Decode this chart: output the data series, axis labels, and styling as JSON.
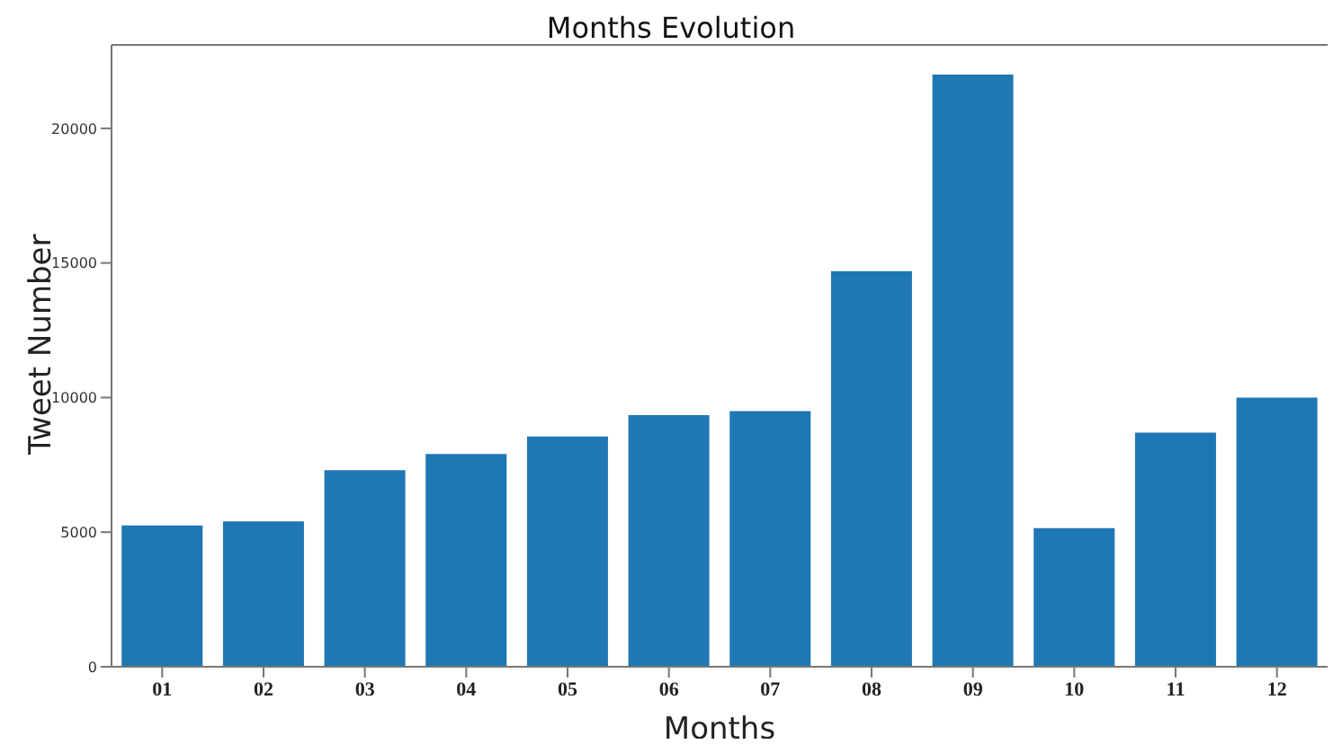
{
  "chart_data": {
    "type": "bar",
    "title": "Months Evolution",
    "xlabel": "Months",
    "ylabel": "Tweet Number",
    "categories": [
      "01",
      "02",
      "03",
      "04",
      "05",
      "06",
      "07",
      "08",
      "09",
      "10",
      "11",
      "12"
    ],
    "values": [
      5250,
      5400,
      7300,
      7900,
      8550,
      9350,
      9500,
      14700,
      22000,
      5150,
      8700,
      10000
    ],
    "color": "#1f77b4",
    "ylim": [
      0,
      23100
    ],
    "yticks": [
      0,
      5000,
      10000,
      15000,
      20000
    ],
    "grid": false,
    "legend": false
  }
}
